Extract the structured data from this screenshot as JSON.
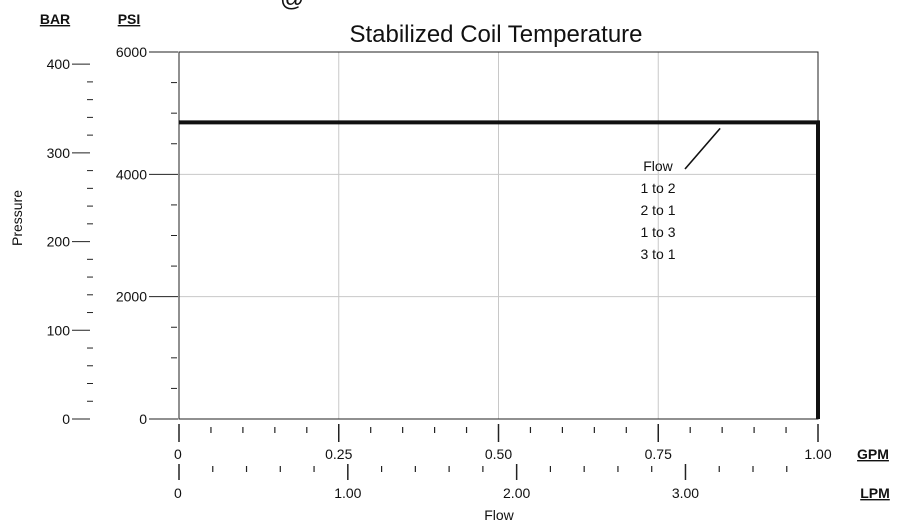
{
  "chart_data": {
    "type": "line",
    "title": "Stabilized Coil Temperature",
    "title_partial": "@",
    "xlabel": "Flow",
    "ylabel": "Pressure",
    "primary_x": {
      "unit": "GPM",
      "range": [
        0,
        1.0
      ],
      "tick_labels": [
        "0",
        "0.25",
        "0.50",
        "0.75",
        "1.00"
      ]
    },
    "secondary_x": {
      "unit": "LPM",
      "range": [
        0,
        3.785
      ],
      "tick_labels": [
        "0",
        "1.00",
        "2.00",
        "3.00"
      ]
    },
    "primary_y": {
      "unit": "PSI",
      "range": [
        0,
        6000
      ],
      "tick_labels": [
        "0",
        "2000",
        "4000",
        "6000"
      ]
    },
    "secondary_y": {
      "unit": "BAR",
      "range": [
        0,
        413.7
      ],
      "tick_labels": [
        "0",
        "100",
        "200",
        "300",
        "400"
      ]
    },
    "grid": true,
    "series": [
      {
        "x": [
          0,
          1.0,
          1.0
        ],
        "y": [
          4850,
          4850,
          0
        ]
      }
    ],
    "annotation": {
      "lines": [
        "Flow",
        "1 to 2",
        "2 to 1",
        "1 to 3",
        "3 to 1"
      ],
      "pointer_to": {
        "x": 0.875,
        "y": 4850
      }
    }
  }
}
